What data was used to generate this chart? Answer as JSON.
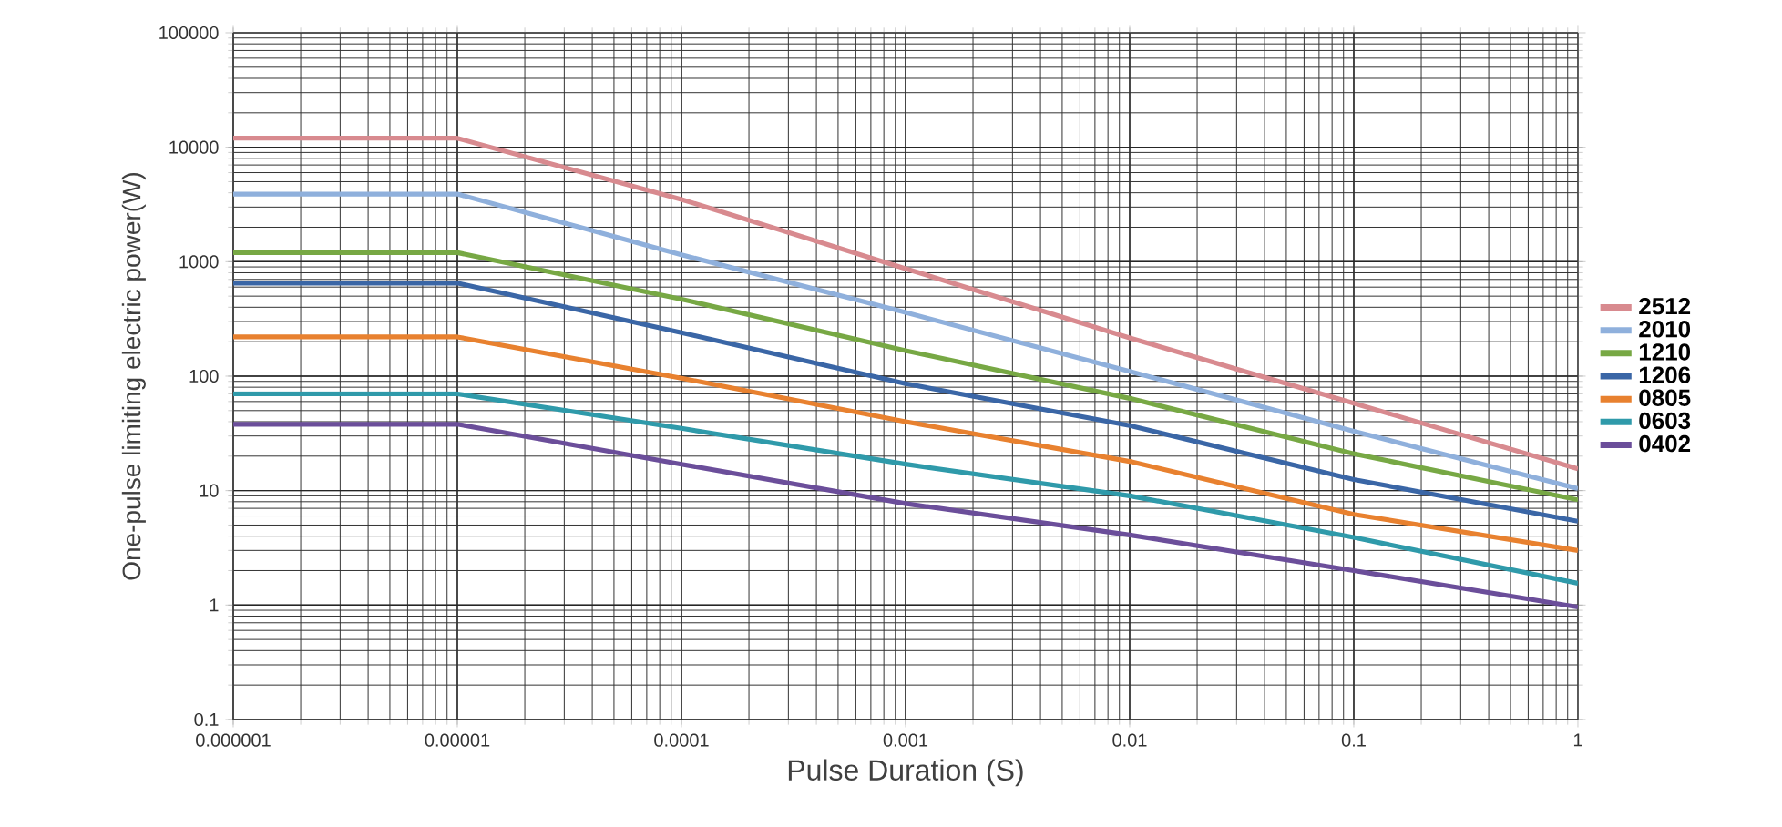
{
  "chart_data": {
    "type": "line",
    "xlabel": "Pulse Duration (S)",
    "ylabel": "One-pulse limiting electric power(W)",
    "log": "xy",
    "grid": true,
    "legend": "right",
    "xlim": [
      1e-06,
      1
    ],
    "ylim": [
      0.1,
      100000
    ],
    "xticks": [
      {
        "value": 1e-06,
        "label": "0.000001"
      },
      {
        "value": 1e-05,
        "label": "0.00001"
      },
      {
        "value": 0.0001,
        "label": "0.0001"
      },
      {
        "value": 0.001,
        "label": "0.001"
      },
      {
        "value": 0.01,
        "label": "0.01"
      },
      {
        "value": 0.1,
        "label": "0.1"
      },
      {
        "value": 1,
        "label": "1"
      }
    ],
    "yticks": [
      0.1,
      1,
      10,
      100,
      1000,
      10000,
      100000
    ],
    "x": [
      1e-06,
      1e-05,
      0.0001,
      0.001,
      0.01,
      0.1,
      1
    ],
    "series": [
      {
        "name": "2512",
        "color": "#d88a8f",
        "values": [
          12000,
          12000,
          3500,
          870,
          216,
          58,
          15.5
        ]
      },
      {
        "name": "2010",
        "color": "#8fb0dc",
        "values": [
          3900,
          3900,
          1150,
          360,
          110,
          33,
          10.4
        ]
      },
      {
        "name": "1210",
        "color": "#77a844",
        "values": [
          1200,
          1200,
          470,
          167,
          64,
          21,
          8.3
        ]
      },
      {
        "name": "1206",
        "color": "#3a66a6",
        "values": [
          650,
          650,
          240,
          86,
          37,
          12.5,
          5.4
        ]
      },
      {
        "name": "0805",
        "color": "#e8812f",
        "values": [
          220,
          220,
          96,
          40,
          18,
          6.2,
          3.0
        ]
      },
      {
        "name": "0603",
        "color": "#2f9aaa",
        "values": [
          70,
          70,
          35,
          17,
          9,
          3.9,
          1.55
        ]
      },
      {
        "name": "0402",
        "color": "#6b4e9a",
        "values": [
          38,
          38,
          17,
          7.7,
          4.1,
          2.0,
          0.96
        ]
      }
    ]
  }
}
